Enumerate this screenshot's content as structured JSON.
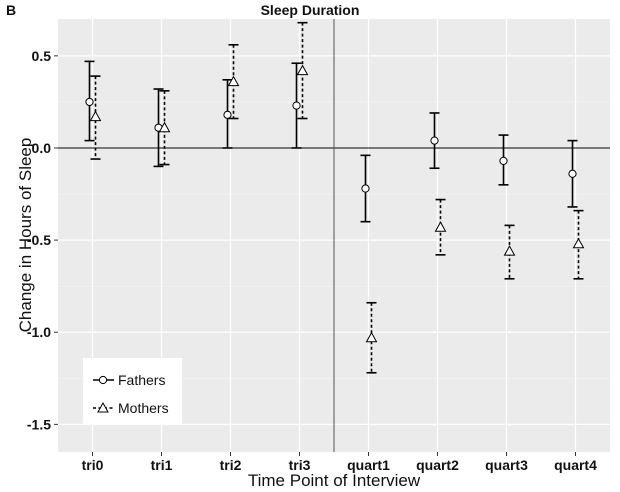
{
  "panel_tag": "B",
  "chart_data": {
    "type": "scatter",
    "title": "Sleep Duration",
    "xlabel": "Time Point of Interview",
    "ylabel": "Change in Hours of Sleep",
    "categories": [
      "tri0",
      "tri1",
      "tri2",
      "tri3",
      "quart1",
      "quart2",
      "quart3",
      "quart4"
    ],
    "ylim": [
      -1.65,
      0.7
    ],
    "yticks": [
      -1.5,
      -1.0,
      -0.5,
      0.0,
      0.5
    ],
    "ytick_labels": [
      "-1.5",
      "-1.0",
      "-0.5",
      "0.0",
      "0.5"
    ],
    "grid": true,
    "reference_line_y": 0,
    "divider_between": [
      "tri3",
      "quart1"
    ],
    "legend_position": "bottom-left",
    "series": [
      {
        "name": "Fathers",
        "marker": "circle",
        "line_style": "solid",
        "values": [
          0.25,
          0.11,
          0.18,
          0.23,
          -0.22,
          0.04,
          -0.07,
          -0.14
        ],
        "lower": [
          0.04,
          -0.1,
          0.0,
          0.0,
          -0.4,
          -0.11,
          -0.2,
          -0.32
        ],
        "upper": [
          0.47,
          0.32,
          0.37,
          0.46,
          -0.04,
          0.19,
          0.07,
          0.04
        ]
      },
      {
        "name": "Mothers",
        "marker": "triangle",
        "line_style": "dashed",
        "values": [
          0.17,
          0.11,
          0.36,
          0.42,
          -1.03,
          -0.43,
          -0.56,
          -0.52
        ],
        "lower": [
          -0.06,
          -0.09,
          0.16,
          0.16,
          -1.22,
          -0.58,
          -0.71,
          -0.71
        ],
        "upper": [
          0.39,
          0.31,
          0.56,
          0.68,
          -0.84,
          -0.28,
          -0.42,
          -0.34
        ]
      }
    ]
  }
}
